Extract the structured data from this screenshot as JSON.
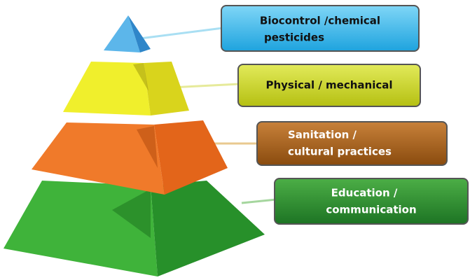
{
  "levels": [
    {
      "lines": [
        "Biocontrol /chemical",
        "pesticides"
      ]
    },
    {
      "lines": [
        "Physical / mechanical"
      ]
    },
    {
      "lines": [
        "Sanitation /",
        "cultural practices"
      ]
    },
    {
      "lines": [
        "Education /",
        "communication"
      ]
    }
  ]
}
